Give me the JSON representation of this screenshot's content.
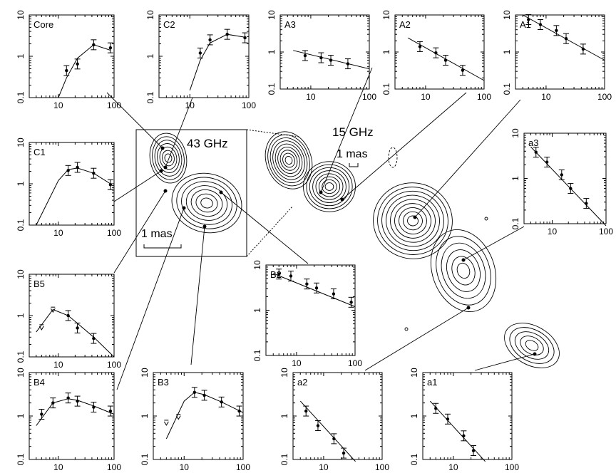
{
  "figure": {
    "inset_label": "43 GHz",
    "inset_scale": "1 mas",
    "main_label": "15 GHz",
    "main_scale": "1 mas"
  },
  "chart_data": [
    {
      "type": "scatter",
      "title": "Core",
      "log": true,
      "xlim": [
        3,
        100
      ],
      "ylim": [
        0.1,
        10
      ],
      "xticks": [
        10,
        100
      ],
      "yticks": [
        0.1,
        1,
        10
      ],
      "x": [
        14,
        22,
        43,
        86
      ],
      "y": [
        0.45,
        0.65,
        1.9,
        1.6
      ],
      "curve_x": [
        10,
        14,
        22,
        43,
        86
      ],
      "curve_y": [
        0.1,
        0.3,
        0.9,
        1.9,
        1.4
      ]
    },
    {
      "type": "scatter",
      "title": "C2",
      "log": true,
      "xlim": [
        3,
        100
      ],
      "ylim": [
        0.1,
        10
      ],
      "xticks": [
        10,
        100
      ],
      "yticks": [
        0.1,
        1,
        10
      ],
      "x": [
        15,
        22,
        43,
        86
      ],
      "y": [
        1.2,
        2.5,
        3.4,
        2.8
      ],
      "curve_x": [
        10,
        15,
        22,
        43,
        86
      ],
      "curve_y": [
        0.15,
        0.8,
        2.1,
        3.4,
        2.9
      ]
    },
    {
      "type": "scatter",
      "title": "A3",
      "log": true,
      "xlim": [
        3,
        100
      ],
      "ylim": [
        0.1,
        10
      ],
      "xticks": [
        10,
        100
      ],
      "yticks": [
        0.1,
        1,
        10
      ],
      "x": [
        8,
        15,
        22,
        43
      ],
      "y": [
        0.8,
        0.7,
        0.6,
        0.48
      ],
      "curve_x": [
        5,
        100
      ],
      "curve_y": [
        1.1,
        0.35
      ]
    },
    {
      "type": "scatter",
      "title": "A2",
      "log": true,
      "xlim": [
        3,
        100
      ],
      "ylim": [
        0.1,
        10
      ],
      "xticks": [
        10,
        100
      ],
      "yticks": [
        0.1,
        1,
        10
      ],
      "x": [
        8,
        15,
        22,
        43
      ],
      "y": [
        1.4,
        0.95,
        0.6,
        0.32
      ],
      "curve_x": [
        5,
        100
      ],
      "curve_y": [
        2.4,
        0.17
      ]
    },
    {
      "type": "scatter",
      "title": "A1",
      "log": true,
      "xlim": [
        3,
        100
      ],
      "ylim": [
        0.1,
        10
      ],
      "xticks": [
        10,
        100
      ],
      "yticks": [
        0.1,
        1,
        10
      ],
      "x": [
        5,
        8,
        15,
        22,
        43
      ],
      "y": [
        7.5,
        5.5,
        3.8,
        2.3,
        1.2
      ],
      "curve_x": [
        4,
        100
      ],
      "curve_y": [
        10,
        0.6
      ]
    },
    {
      "type": "scatter",
      "title": "C1",
      "log": true,
      "xlim": [
        3,
        100
      ],
      "ylim": [
        0.1,
        10
      ],
      "xticks": [
        10,
        100
      ],
      "yticks": [
        0.1,
        1,
        10
      ],
      "x": [
        15,
        22,
        43,
        86
      ],
      "y": [
        2.1,
        2.5,
        1.8,
        0.95
      ],
      "curve_x": [
        4,
        10,
        15,
        22,
        43,
        86
      ],
      "curve_y": [
        0.1,
        1.2,
        2.2,
        2.4,
        1.8,
        1.0
      ]
    },
    {
      "type": "scatter",
      "title": "a3",
      "log": true,
      "xlim": [
        3,
        100
      ],
      "ylim": [
        0.1,
        10
      ],
      "xticks": [
        10,
        100
      ],
      "yticks": [
        0.1,
        1,
        10
      ],
      "x": [
        5,
        8,
        15,
        22,
        43
      ],
      "y": [
        3.8,
        2.3,
        1.2,
        0.6,
        0.28
      ],
      "curve_x": [
        4,
        100
      ],
      "curve_y": [
        5,
        0.09
      ]
    },
    {
      "type": "scatter",
      "title": "B5",
      "log": true,
      "xlim": [
        3,
        100
      ],
      "ylim": [
        0.1,
        10
      ],
      "xticks": [
        10,
        100
      ],
      "yticks": [
        0.1,
        1,
        10
      ],
      "x": [
        15,
        22,
        43
      ],
      "y": [
        1.0,
        0.5,
        0.28
      ],
      "curve_x": [
        4,
        8,
        15,
        22,
        43,
        100
      ],
      "curve_y": [
        0.4,
        1.4,
        1.0,
        0.65,
        0.3,
        0.1
      ],
      "upper_x": [
        5,
        8
      ],
      "upper_y": [
        0.6,
        1.6
      ]
    },
    {
      "type": "scatter",
      "title": "B2",
      "log": true,
      "xlim": [
        3,
        100
      ],
      "ylim": [
        0.1,
        10
      ],
      "xticks": [
        10,
        100
      ],
      "yticks": [
        0.1,
        1,
        10
      ],
      "x": [
        5,
        8,
        15,
        22,
        43,
        86
      ],
      "y": [
        6.3,
        5.7,
        3.8,
        3.1,
        2.3,
        1.5
      ],
      "curve_x": [
        4,
        100
      ],
      "curve_y": [
        6.5,
        1.2
      ]
    },
    {
      "type": "scatter",
      "title": "B4",
      "log": true,
      "xlim": [
        3,
        100
      ],
      "ylim": [
        0.1,
        10
      ],
      "xticks": [
        10,
        100
      ],
      "yticks": [
        0.1,
        1,
        10
      ],
      "x": [
        5,
        8,
        15,
        22,
        43,
        86
      ],
      "y": [
        1.1,
        2.0,
        2.6,
        2.2,
        1.6,
        1.3
      ],
      "curve_x": [
        4,
        8,
        15,
        22,
        43,
        100
      ],
      "curve_y": [
        0.6,
        2.0,
        2.5,
        2.3,
        1.7,
        1.1
      ]
    },
    {
      "type": "scatter",
      "title": "B3",
      "log": true,
      "xlim": [
        3,
        100
      ],
      "ylim": [
        0.1,
        10
      ],
      "xticks": [
        10,
        100
      ],
      "yticks": [
        0.1,
        1,
        10
      ],
      "x": [
        15,
        22,
        43,
        86
      ],
      "y": [
        3.5,
        3.0,
        2.1,
        1.3
      ],
      "curve_x": [
        5,
        10,
        15,
        22,
        43,
        100
      ],
      "curve_y": [
        0.3,
        2.2,
        3.5,
        3.1,
        2.1,
        1.2
      ],
      "upper_x": [
        5,
        8
      ],
      "upper_y": [
        0.8,
        1.1
      ]
    },
    {
      "type": "scatter",
      "title": "a2",
      "log": true,
      "xlim": [
        3,
        100
      ],
      "ylim": [
        0.1,
        10
      ],
      "xticks": [
        10,
        100
      ],
      "yticks": [
        0.1,
        1,
        10
      ],
      "x": [
        5,
        8,
        15,
        22
      ],
      "y": [
        1.3,
        0.6,
        0.3,
        0.14
      ],
      "curve_x": [
        4,
        35
      ],
      "curve_y": [
        2.2,
        0.09
      ]
    },
    {
      "type": "scatter",
      "title": "a1",
      "log": true,
      "xlim": [
        3,
        100
      ],
      "ylim": [
        0.1,
        10
      ],
      "xticks": [
        10,
        100
      ],
      "yticks": [
        0.1,
        1,
        10
      ],
      "x": [
        5,
        8,
        15,
        22
      ],
      "y": [
        1.5,
        0.85,
        0.35,
        0.16
      ],
      "curve_x": [
        4,
        35
      ],
      "curve_y": [
        2.2,
        0.09
      ]
    }
  ]
}
